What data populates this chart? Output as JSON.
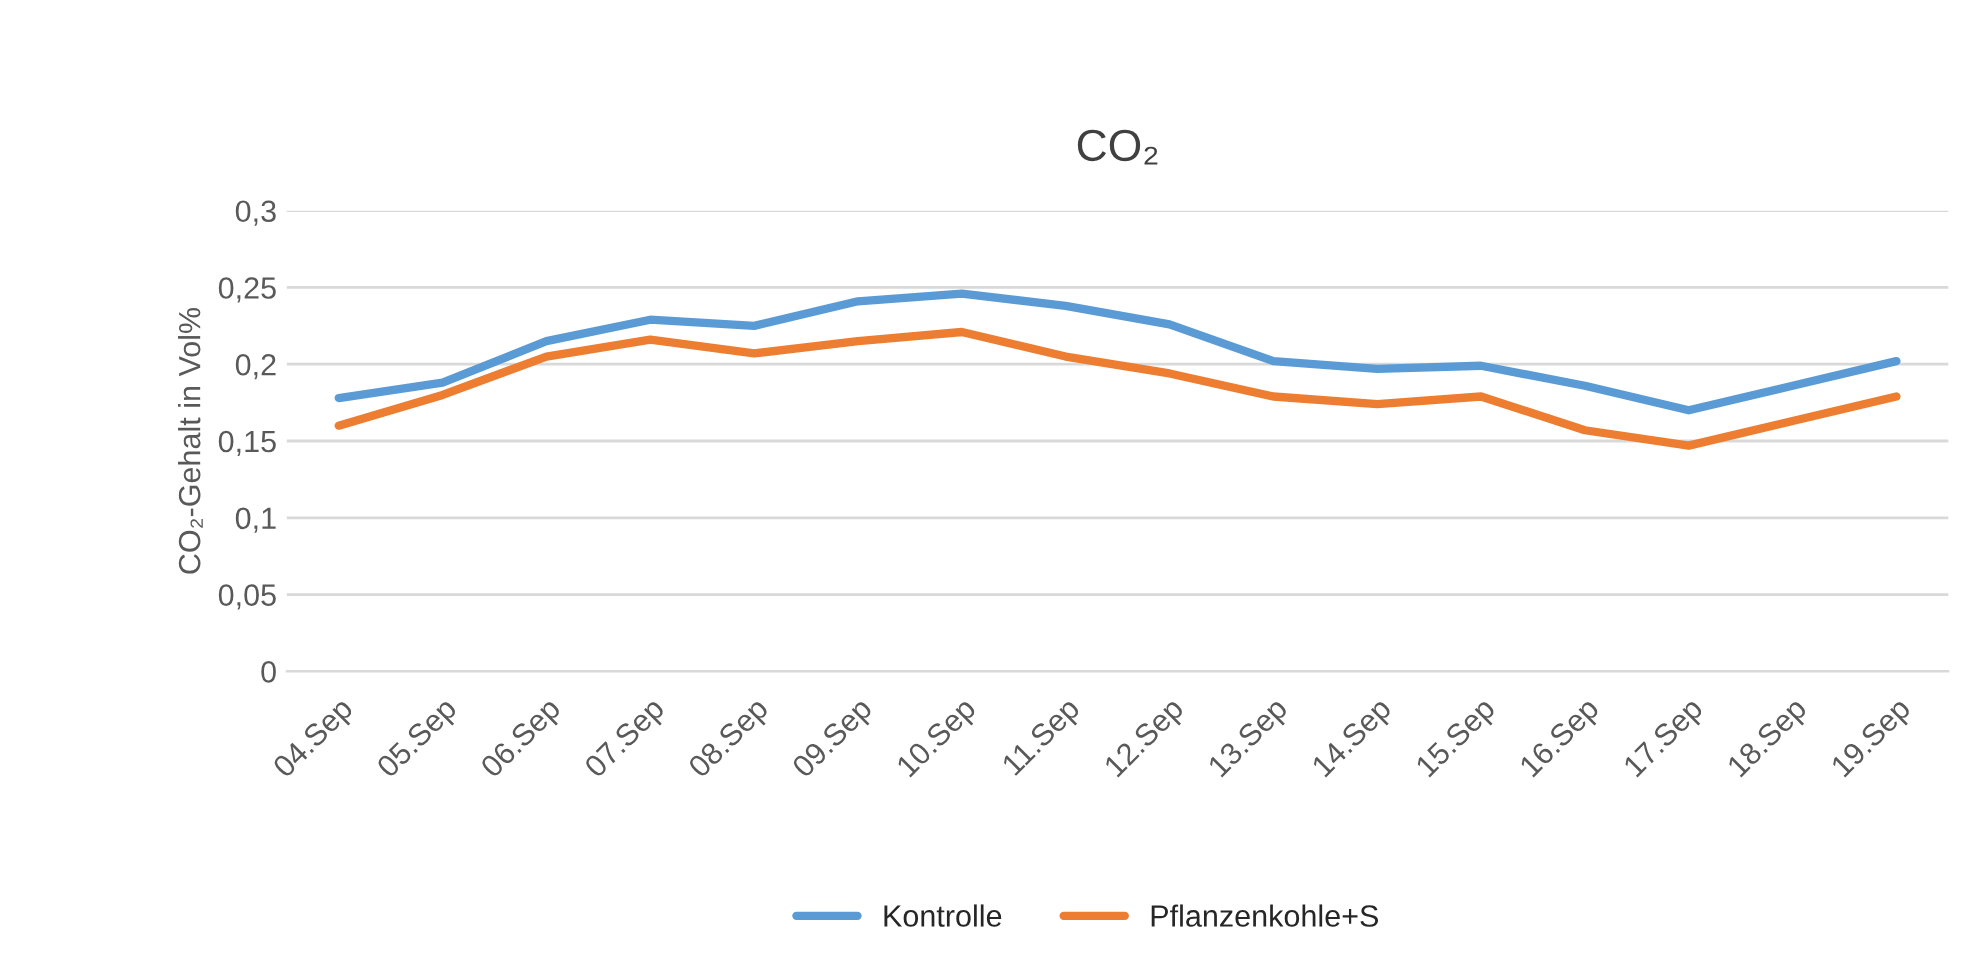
{
  "chart_data": {
    "type": "line",
    "title": "CO₂",
    "ylabel": "CO₂-Gehalt in Vol%",
    "categories": [
      "04.Sep",
      "05.Sep",
      "06.Sep",
      "07.Sep",
      "08.Sep",
      "09.Sep",
      "10.Sep",
      "11.Sep",
      "12.Sep",
      "13.Sep",
      "14.Sep",
      "15.Sep",
      "16.Sep",
      "17.Sep",
      "18.Sep",
      "19.Sep"
    ],
    "series": [
      {
        "name": "Kontrolle",
        "color": "#5b9bd5",
        "values": [
          0.178,
          0.188,
          0.215,
          0.229,
          0.225,
          0.241,
          0.246,
          0.238,
          0.226,
          0.202,
          0.197,
          0.199,
          0.186,
          0.17,
          0.186,
          0.202
        ]
      },
      {
        "name": "Pflanzenkohle+S",
        "color": "#ed7d31",
        "values": [
          0.16,
          0.18,
          0.205,
          0.216,
          0.207,
          0.215,
          0.221,
          0.205,
          0.194,
          0.179,
          0.174,
          0.179,
          0.157,
          0.147,
          0.163,
          0.179
        ]
      }
    ],
    "ylim": [
      0,
      0.3
    ],
    "yticks": [
      {
        "value": 0,
        "label": "0"
      },
      {
        "value": 0.05,
        "label": "0,05"
      },
      {
        "value": 0.1,
        "label": "0,1"
      },
      {
        "value": 0.15,
        "label": "0,15"
      },
      {
        "value": 0.2,
        "label": "0,2"
      },
      {
        "value": 0.25,
        "label": "0,25"
      },
      {
        "value": 0.3,
        "label": "0,3"
      }
    ],
    "grid": "y",
    "legend": "bottom",
    "marker": "none",
    "line_style": "solid"
  }
}
